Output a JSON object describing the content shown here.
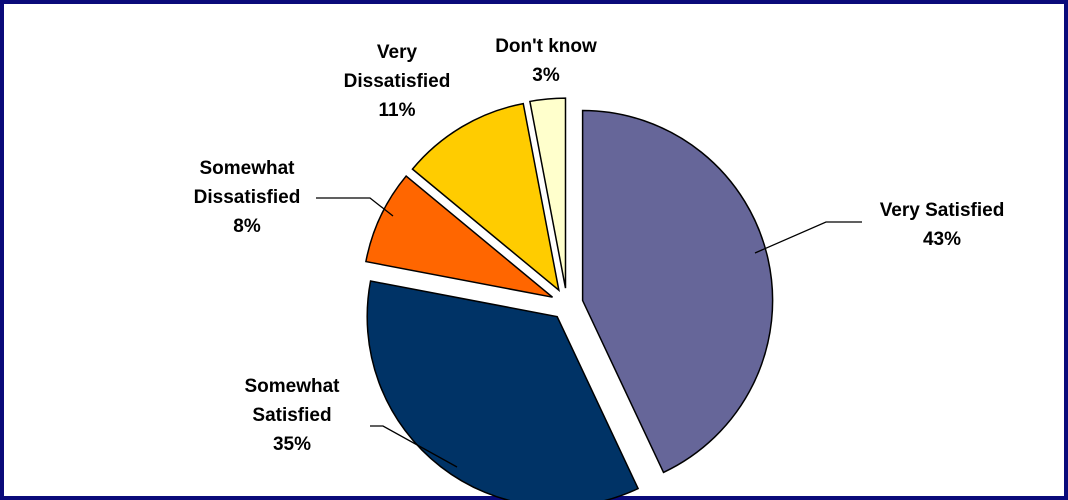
{
  "chart_data": {
    "type": "pie",
    "title": "",
    "slices": [
      {
        "name": "Very Satisfied",
        "value": 43,
        "label_lines": [
          "Very Satisfied",
          "43%"
        ],
        "color": "#666699"
      },
      {
        "name": "Somewhat Satisfied",
        "value": 35,
        "label_lines": [
          "Somewhat",
          "Satisfied",
          "35%"
        ],
        "color": "#003366"
      },
      {
        "name": "Somewhat Dissatisfied",
        "value": 8,
        "label_lines": [
          "Somewhat",
          "Dissatisfied",
          "8%"
        ],
        "color": "#ff6600"
      },
      {
        "name": "Very Dissatisfied",
        "value": 11,
        "label_lines": [
          "Very",
          "Dissatisfied",
          "11%"
        ],
        "color": "#ffcc00"
      },
      {
        "name": "Don't know",
        "value": 3,
        "label_lines": [
          "Don't know",
          "3%"
        ],
        "color": "#ffffcc"
      }
    ],
    "legend": "none",
    "frame_color": "#0a0a7a"
  }
}
